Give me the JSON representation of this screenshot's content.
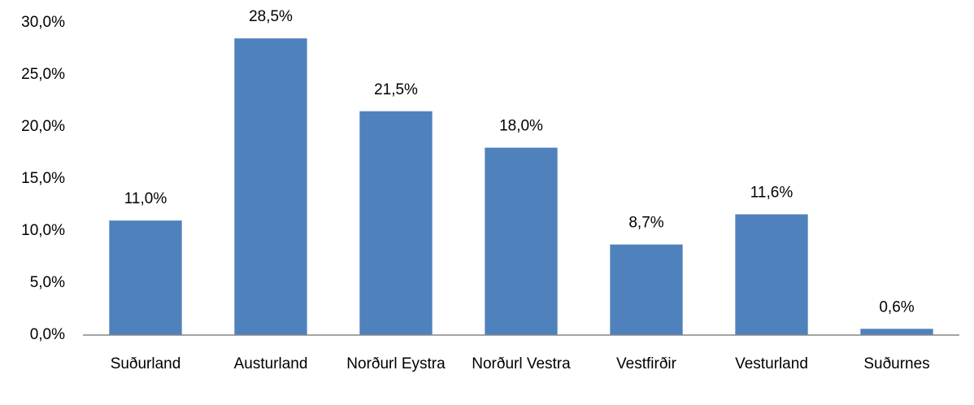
{
  "chart_data": {
    "type": "bar",
    "categories": [
      "Suðurland",
      "Austurland",
      "Norðurl Eystra",
      "Norðurl Vestra",
      "Vestfirðir",
      "Vesturland",
      "Suðurnes"
    ],
    "values": [
      11.0,
      28.5,
      21.5,
      18.0,
      8.7,
      11.6,
      0.6
    ],
    "value_labels": [
      "11,0%",
      "28,5%",
      "21,5%",
      "18,0%",
      "8,7%",
      "11,6%",
      "0,6%"
    ],
    "color": "#4f81bd",
    "ylim": [
      0,
      30
    ],
    "yticks": [
      {
        "value": 0,
        "label": "0,0%"
      },
      {
        "value": 5,
        "label": "5,0%"
      },
      {
        "value": 10,
        "label": "10,0%"
      },
      {
        "value": 15,
        "label": "15,0%"
      },
      {
        "value": 20,
        "label": "20,0%"
      },
      {
        "value": 25,
        "label": "25,0%"
      },
      {
        "value": 30,
        "label": "30,0%"
      }
    ],
    "grid": false
  }
}
